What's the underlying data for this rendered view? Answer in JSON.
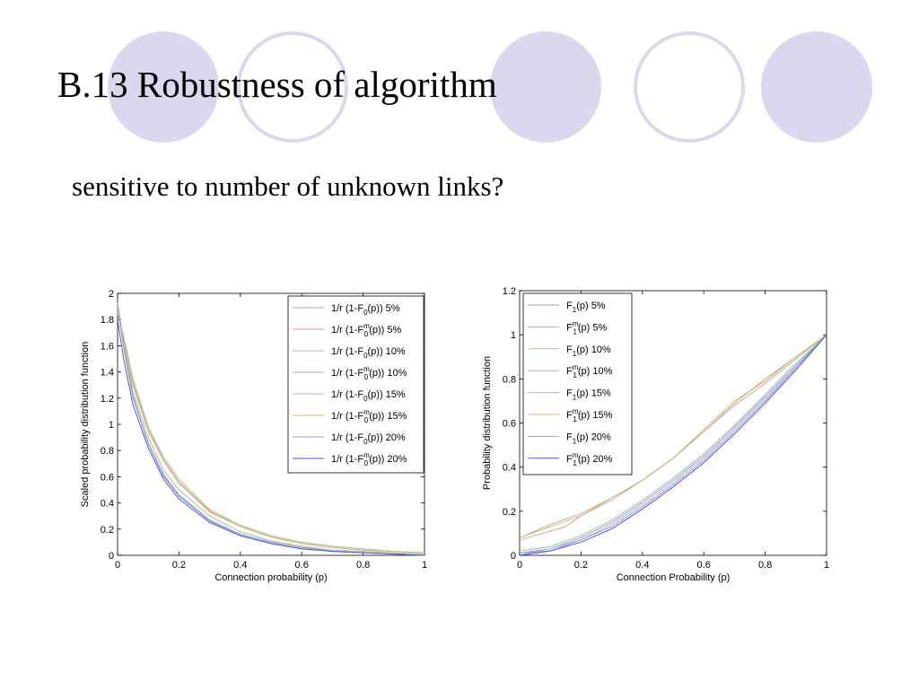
{
  "slide": {
    "title": "B.13 Robustness of algorithm",
    "subtitle": "sensitive to number of unknown links?"
  },
  "theme": {
    "circle_color": "#d9d8ee"
  },
  "chart_data": [
    {
      "type": "line",
      "xlabel": "Connection probability (p)",
      "ylabel": "Scaled probability distribution function",
      "xlim": [
        0,
        1
      ],
      "ylim": [
        0,
        2
      ],
      "xticks": [
        "0",
        "0.2",
        "0.4",
        "0.6",
        "0.8",
        "1"
      ],
      "yticks": [
        "0",
        "0.2",
        "0.4",
        "0.6",
        "0.8",
        "1",
        "1.2",
        "1.4",
        "1.6",
        "1.8",
        "2"
      ],
      "legend_position": "top-right",
      "legend": [
        {
          "pre": "1/r (1-F",
          "sup": "",
          "sub": "0",
          "post": "(p)) 5%",
          "color": "#9999dd"
        },
        {
          "pre": "1/r (1-F",
          "sup": "m",
          "sub": "0",
          "post": "(p)) 5%",
          "color": "#e39a9a"
        },
        {
          "pre": "1/r (1-F",
          "sup": "",
          "sub": "0",
          "post": "(p)) 10%",
          "color": "#8fcf8f"
        },
        {
          "pre": "1/r (1-F",
          "sup": "m",
          "sub": "0",
          "post": "(p)) 10%",
          "color": "#9fbf9f"
        },
        {
          "pre": "1/r (1-F",
          "sup": "",
          "sub": "0",
          "post": "(p)) 15%",
          "color": "#b3b3e6"
        },
        {
          "pre": "1/r (1-F",
          "sup": "m",
          "sub": "0",
          "post": "(p)) 15%",
          "color": "#e0b070"
        },
        {
          "pre": "1/r (1-F",
          "sup": "",
          "sub": "0",
          "post": "(p)) 20%",
          "color": "#9999cc"
        },
        {
          "pre": "1/r (1-F",
          "sup": "m",
          "sub": "0",
          "post": "(p)) 20%",
          "color": "#5555dd"
        }
      ],
      "series": [
        {
          "color": "#9999dd",
          "x": [
            0,
            0.02,
            0.05,
            0.1,
            0.15,
            0.2,
            0.3,
            0.4,
            0.5,
            0.6,
            0.7,
            0.8,
            0.9,
            1.0
          ],
          "y": [
            1.9,
            1.6,
            1.2,
            0.85,
            0.6,
            0.45,
            0.26,
            0.15,
            0.09,
            0.05,
            0.03,
            0.02,
            0.01,
            0.0
          ]
        },
        {
          "color": "#e39a9a",
          "x": [
            0,
            0.02,
            0.05,
            0.1,
            0.15,
            0.2,
            0.3,
            0.4,
            0.5,
            0.6,
            0.7,
            0.8,
            0.9,
            1.0
          ],
          "y": [
            1.88,
            1.65,
            1.3,
            0.95,
            0.72,
            0.55,
            0.33,
            0.22,
            0.14,
            0.09,
            0.06,
            0.04,
            0.03,
            0.02
          ]
        },
        {
          "color": "#8fcf8f",
          "x": [
            0,
            0.02,
            0.05,
            0.1,
            0.15,
            0.2,
            0.3,
            0.4,
            0.5,
            0.6,
            0.7,
            0.8,
            0.9,
            1.0
          ],
          "y": [
            1.92,
            1.62,
            1.25,
            0.9,
            0.65,
            0.5,
            0.3,
            0.18,
            0.11,
            0.07,
            0.04,
            0.03,
            0.02,
            0.01
          ]
        },
        {
          "color": "#9fbf9f",
          "x": [
            0,
            0.02,
            0.05,
            0.1,
            0.15,
            0.2,
            0.3,
            0.4,
            0.5,
            0.6,
            0.7,
            0.8,
            0.9,
            1.0
          ],
          "y": [
            1.85,
            1.67,
            1.35,
            0.98,
            0.75,
            0.58,
            0.35,
            0.23,
            0.15,
            0.1,
            0.07,
            0.05,
            0.03,
            0.02
          ]
        },
        {
          "color": "#b3b3e6",
          "x": [
            0,
            0.02,
            0.05,
            0.1,
            0.15,
            0.2,
            0.3,
            0.4,
            0.5,
            0.6,
            0.7,
            0.8,
            0.9,
            1.0
          ],
          "y": [
            1.9,
            1.58,
            1.2,
            0.85,
            0.62,
            0.46,
            0.27,
            0.16,
            0.1,
            0.06,
            0.04,
            0.02,
            0.01,
            0.0
          ]
        },
        {
          "color": "#e0b070",
          "x": [
            0,
            0.02,
            0.05,
            0.1,
            0.15,
            0.2,
            0.3,
            0.4,
            0.5,
            0.6,
            0.7,
            0.8,
            0.9,
            1.0
          ],
          "y": [
            1.86,
            1.64,
            1.32,
            0.96,
            0.73,
            0.56,
            0.34,
            0.22,
            0.14,
            0.09,
            0.06,
            0.04,
            0.03,
            0.02
          ]
        },
        {
          "color": "#9999cc",
          "x": [
            0,
            0.02,
            0.05,
            0.1,
            0.15,
            0.2,
            0.3,
            0.4,
            0.5,
            0.6,
            0.7,
            0.8,
            0.9,
            1.0
          ],
          "y": [
            1.93,
            1.6,
            1.22,
            0.86,
            0.61,
            0.46,
            0.27,
            0.16,
            0.1,
            0.06,
            0.03,
            0.02,
            0.01,
            0.0
          ]
        },
        {
          "color": "#5555dd",
          "x": [
            0,
            0.02,
            0.05,
            0.1,
            0.15,
            0.2,
            0.3,
            0.4,
            0.5,
            0.6,
            0.7,
            0.8,
            0.9,
            1.0
          ],
          "y": [
            1.8,
            1.5,
            1.15,
            0.82,
            0.58,
            0.43,
            0.25,
            0.15,
            0.09,
            0.05,
            0.03,
            0.02,
            0.01,
            0.0
          ]
        }
      ]
    },
    {
      "type": "line",
      "xlabel": "Connection Probability (p)",
      "ylabel": "Probability distribution function",
      "xlim": [
        0,
        1
      ],
      "ylim": [
        0,
        1.2
      ],
      "xticks": [
        "0",
        "0.2",
        "0.4",
        "0.6",
        "0.8",
        "1"
      ],
      "yticks": [
        "0",
        "0.2",
        "0.4",
        "0.6",
        "0.8",
        "1",
        "1.2"
      ],
      "legend_position": "top-left",
      "legend": [
        {
          "pre": "F",
          "sup": "",
          "sub": "1",
          "post": "(p) 5%",
          "color": "#9999dd"
        },
        {
          "pre": "F",
          "sup": "m",
          "sub": "1",
          "post": "(p) 5%",
          "color": "#e39a9a"
        },
        {
          "pre": "F",
          "sup": "",
          "sub": "1",
          "post": "(p) 10%",
          "color": "#8fcf8f"
        },
        {
          "pre": "F",
          "sup": "m",
          "sub": "1",
          "post": "(p) 10%",
          "color": "#9fbf9f"
        },
        {
          "pre": "F",
          "sup": "",
          "sub": "1",
          "post": "(p) 15%",
          "color": "#b3b3e6"
        },
        {
          "pre": "F",
          "sup": "m",
          "sub": "1",
          "post": "(p) 15%",
          "color": "#e0b070"
        },
        {
          "pre": "F",
          "sup": "",
          "sub": "1",
          "post": "(p) 20%",
          "color": "#9999cc"
        },
        {
          "pre": "F",
          "sup": "m",
          "sub": "1",
          "post": "(p) 20%",
          "color": "#5555dd"
        }
      ],
      "series": [
        {
          "color": "#9999dd",
          "x": [
            0,
            0.1,
            0.2,
            0.3,
            0.4,
            0.5,
            0.6,
            0.7,
            0.8,
            0.9,
            1.0
          ],
          "y": [
            0.01,
            0.03,
            0.08,
            0.15,
            0.24,
            0.34,
            0.45,
            0.58,
            0.72,
            0.86,
            1.0
          ]
        },
        {
          "color": "#e39a9a",
          "x": [
            0,
            0.1,
            0.15,
            0.2,
            0.3,
            0.4,
            0.5,
            0.6,
            0.7,
            0.8,
            0.9,
            1.0
          ],
          "y": [
            0.07,
            0.11,
            0.13,
            0.18,
            0.26,
            0.34,
            0.44,
            0.56,
            0.69,
            0.8,
            0.9,
            1.0
          ]
        },
        {
          "color": "#8fcf8f",
          "x": [
            0,
            0.1,
            0.2,
            0.3,
            0.4,
            0.5,
            0.6,
            0.7,
            0.8,
            0.9,
            1.0
          ],
          "y": [
            0.02,
            0.04,
            0.09,
            0.16,
            0.25,
            0.35,
            0.46,
            0.59,
            0.73,
            0.87,
            1.0
          ]
        },
        {
          "color": "#9fbf9f",
          "x": [
            0,
            0.1,
            0.2,
            0.3,
            0.4,
            0.5,
            0.6,
            0.7,
            0.8,
            0.9,
            1.0
          ],
          "y": [
            0.08,
            0.14,
            0.19,
            0.26,
            0.34,
            0.44,
            0.56,
            0.68,
            0.78,
            0.89,
            1.0
          ]
        },
        {
          "color": "#b3b3e6",
          "x": [
            0,
            0.1,
            0.2,
            0.3,
            0.4,
            0.5,
            0.6,
            0.7,
            0.8,
            0.9,
            1.0
          ],
          "y": [
            0.0,
            0.03,
            0.07,
            0.14,
            0.23,
            0.33,
            0.44,
            0.57,
            0.71,
            0.85,
            1.0
          ]
        },
        {
          "color": "#e0b070",
          "x": [
            0,
            0.1,
            0.2,
            0.3,
            0.4,
            0.5,
            0.6,
            0.7,
            0.8,
            0.9,
            1.0
          ],
          "y": [
            0.08,
            0.13,
            0.18,
            0.25,
            0.34,
            0.44,
            0.57,
            0.7,
            0.79,
            0.9,
            1.0
          ]
        },
        {
          "color": "#9999cc",
          "x": [
            0,
            0.1,
            0.2,
            0.3,
            0.4,
            0.5,
            0.6,
            0.7,
            0.8,
            0.9,
            1.0
          ],
          "y": [
            0.01,
            0.02,
            0.07,
            0.13,
            0.22,
            0.32,
            0.43,
            0.56,
            0.7,
            0.85,
            1.0
          ]
        },
        {
          "color": "#5555dd",
          "x": [
            0,
            0.1,
            0.2,
            0.3,
            0.4,
            0.5,
            0.6,
            0.7,
            0.8,
            0.9,
            1.0
          ],
          "y": [
            0.0,
            0.02,
            0.06,
            0.12,
            0.21,
            0.31,
            0.42,
            0.55,
            0.69,
            0.84,
            1.0
          ]
        }
      ]
    }
  ]
}
